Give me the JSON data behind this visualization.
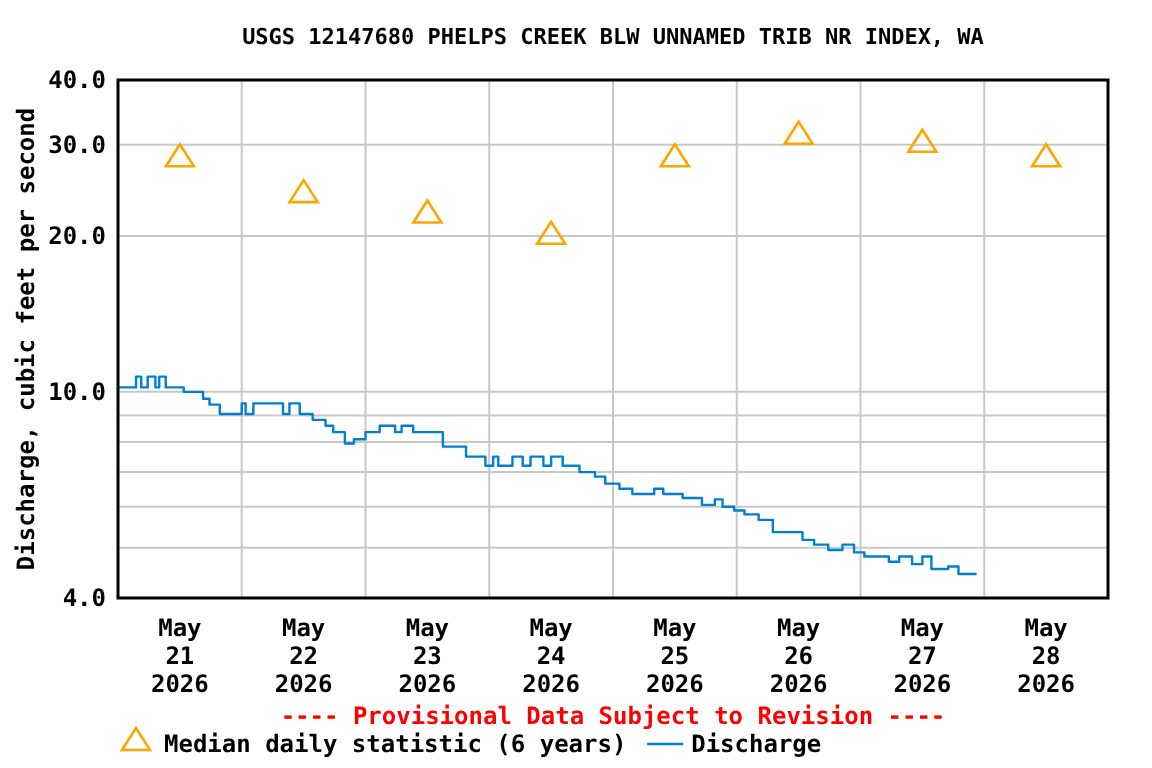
{
  "chart_data": {
    "type": "line",
    "title": "USGS 12147680 PHELPS CREEK BLW UNNAMED TRIB NR INDEX, WA",
    "ylabel": "Discharge, cubic feet per second",
    "annotations": [
      "---- Provisional Data Subject to Revision ----"
    ],
    "log": true,
    "grid": true,
    "legend": "bottom",
    "xlim": [
      "2026-05-21T00:00",
      "2026-05-29T00:00"
    ],
    "xticks": [
      {
        "value": "2026-05-21T12:00",
        "label": "May\n21\n2026"
      },
      {
        "value": "2026-05-22T12:00",
        "label": "May\n22\n2026"
      },
      {
        "value": "2026-05-23T12:00",
        "label": "May\n23\n2026"
      },
      {
        "value": "2026-05-24T12:00",
        "label": "May\n24\n2026"
      },
      {
        "value": "2026-05-25T12:00",
        "label": "May\n25\n2026"
      },
      {
        "value": "2026-05-26T12:00",
        "label": "May\n26\n2026"
      },
      {
        "value": "2026-05-27T12:00",
        "label": "May\n27\n2026"
      },
      {
        "value": "2026-05-28T12:00",
        "label": "May\n28\n2026"
      },
      {
        "value": "2026-05-22T00:00",
        "label": null
      },
      {
        "value": "2026-05-23T00:00",
        "label": null
      },
      {
        "value": "2026-05-24T00:00",
        "label": null
      },
      {
        "value": "2026-05-25T00:00",
        "label": null
      },
      {
        "value": "2026-05-26T00:00",
        "label": null
      },
      {
        "value": "2026-05-27T00:00",
        "label": null
      },
      {
        "value": "2026-05-28T00:00",
        "label": null
      }
    ],
    "ylim": [
      4,
      40
    ],
    "yticks": [
      {
        "value": 4,
        "label": "4.0"
      },
      {
        "value": 5,
        "label": null
      },
      {
        "value": 6,
        "label": null
      },
      {
        "value": 7,
        "label": null
      },
      {
        "value": 8,
        "label": null
      },
      {
        "value": 9,
        "label": null
      },
      {
        "value": 10,
        "label": "10.0"
      },
      {
        "value": 20,
        "label": "20.0"
      },
      {
        "value": 30,
        "label": "30.0"
      },
      {
        "value": 40,
        "label": "40.0"
      }
    ],
    "series": [
      {
        "name": "Median daily statistic (6 years)",
        "type": "scatter",
        "marker": "triangle",
        "color": "#ffa500",
        "x": [
          "2026-05-21T12:00",
          "2026-05-22T12:00",
          "2026-05-23T12:00",
          "2026-05-24T12:00",
          "2026-05-25T12:00",
          "2026-05-26T12:00",
          "2026-05-27T12:00",
          "2026-05-28T12:00"
        ],
        "values": [
          28.5,
          24.3,
          22.2,
          20.2,
          28.5,
          31.5,
          30.4,
          28.5
        ]
      },
      {
        "name": "Discharge",
        "type": "step",
        "marker": "none",
        "color": "#0080d0",
        "x": [
          "2026-05-21T00:00",
          "2026-05-21T03:30",
          "2026-05-21T04:30",
          "2026-05-21T05:45",
          "2026-05-21T07:15",
          "2026-05-21T08:00",
          "2026-05-21T09:15",
          "2026-05-21T12:45",
          "2026-05-21T16:30",
          "2026-05-21T17:45",
          "2026-05-21T19:45",
          "2026-05-22T00:00",
          "2026-05-22T00:45",
          "2026-05-22T02:15",
          "2026-05-22T08:00",
          "2026-05-22T09:15",
          "2026-05-22T11:15",
          "2026-05-22T13:45",
          "2026-05-22T16:15",
          "2026-05-22T17:45",
          "2026-05-22T20:00",
          "2026-05-22T21:45",
          "2026-05-23T00:00",
          "2026-05-23T02:45",
          "2026-05-23T05:45",
          "2026-05-23T07:00",
          "2026-05-23T09:15",
          "2026-05-23T15:00",
          "2026-05-23T19:30",
          "2026-05-23T23:15",
          "2026-05-24T00:45",
          "2026-05-24T01:45",
          "2026-05-24T04:30",
          "2026-05-24T06:30",
          "2026-05-24T08:00",
          "2026-05-24T10:30",
          "2026-05-24T12:00",
          "2026-05-24T14:15",
          "2026-05-24T17:30",
          "2026-05-24T20:30",
          "2026-05-24T22:30",
          "2026-05-25T01:15",
          "2026-05-25T03:45",
          "2026-05-25T08:00",
          "2026-05-25T09:45",
          "2026-05-25T13:30",
          "2026-05-25T17:15",
          "2026-05-25T19:45",
          "2026-05-25T21:15",
          "2026-05-25T23:30",
          "2026-05-26T01:30",
          "2026-05-26T04:15",
          "2026-05-26T07:00",
          "2026-05-26T12:45",
          "2026-05-26T15:00",
          "2026-05-26T17:45",
          "2026-05-26T20:30",
          "2026-05-26T22:45",
          "2026-05-27T00:45",
          "2026-05-27T05:30",
          "2026-05-27T07:30",
          "2026-05-27T10:00",
          "2026-05-27T12:00",
          "2026-05-27T13:45",
          "2026-05-27T17:00",
          "2026-05-27T19:00",
          "2026-05-27T22:30"
        ],
        "values": [
          10.2,
          10.7,
          10.2,
          10.7,
          10.2,
          10.7,
          10.2,
          10.0,
          9.7,
          9.45,
          9.06,
          9.5,
          9.06,
          9.5,
          9.06,
          9.5,
          9.06,
          8.83,
          8.6,
          8.36,
          7.95,
          8.1,
          8.36,
          8.6,
          8.36,
          8.6,
          8.36,
          7.84,
          7.5,
          7.2,
          7.5,
          7.2,
          7.5,
          7.2,
          7.5,
          7.2,
          7.5,
          7.2,
          7.0,
          6.86,
          6.65,
          6.5,
          6.35,
          6.5,
          6.35,
          6.24,
          6.05,
          6.2,
          6.0,
          5.9,
          5.8,
          5.66,
          5.36,
          5.18,
          5.07,
          4.95,
          5.07,
          4.9,
          4.81,
          4.7,
          4.81,
          4.65,
          4.81,
          4.55,
          4.6,
          4.45,
          4.45
        ]
      }
    ]
  }
}
